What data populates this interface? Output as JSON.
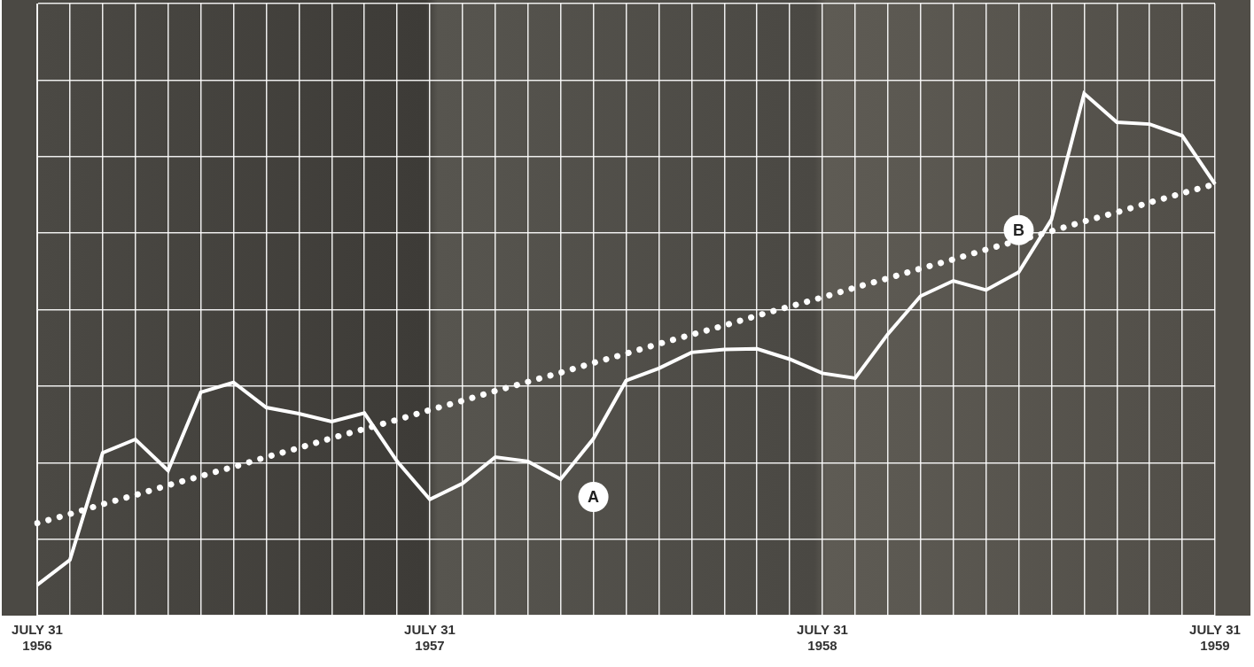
{
  "chart_data": {
    "type": "line",
    "categories": [
      "JULY 31 1956",
      null,
      null,
      null,
      null,
      null,
      null,
      null,
      null,
      null,
      null,
      null,
      "JULY 31 1957",
      null,
      null,
      null,
      null,
      null,
      null,
      null,
      null,
      null,
      null,
      null,
      "JULY 31 1958",
      null,
      null,
      null,
      null,
      null,
      null,
      null,
      null,
      null,
      null,
      null,
      "JULY 31 1959"
    ],
    "series": [
      {
        "color": "#ffffff",
        "line_style": "solid",
        "values": [
          5.0,
          9.1,
          26.6,
          28.8,
          23.7,
          36.5,
          38.1,
          34.0,
          33.0,
          31.7,
          33.1,
          25.2,
          19.0,
          21.6,
          25.9,
          25.2,
          22.3,
          28.9,
          38.4,
          40.4,
          43.0,
          43.5,
          43.6,
          41.9,
          39.6,
          38.8,
          46.0,
          52.2,
          54.7,
          53.2,
          56.1,
          64.7,
          85.3,
          80.6,
          80.3,
          78.4,
          70.5
        ]
      },
      {
        "color": "#ffffff",
        "line_style": "dotted",
        "values": [
          15.1,
          16.6,
          18.2,
          19.7,
          21.3,
          22.8,
          24.3,
          25.9,
          27.4,
          29.0,
          30.5,
          32.0,
          33.6,
          35.1,
          36.7,
          38.2,
          39.7,
          41.3,
          42.8,
          44.4,
          45.9,
          47.4,
          49.0,
          50.5,
          52.0,
          53.6,
          55.1,
          56.7,
          58.2,
          59.8,
          61.3,
          62.8,
          64.4,
          65.9,
          67.5,
          69.0,
          70.5
        ]
      }
    ],
    "annotations": [
      {
        "label": "A",
        "x": 17,
        "value": 19.4
      },
      {
        "label": "B",
        "x": 30,
        "value": 63.0
      }
    ],
    "ylim": [
      0,
      100
    ],
    "yticks": [
      0,
      12.5,
      25,
      37.5,
      50,
      62.5,
      75,
      87.5,
      100
    ],
    "grid": true,
    "tick_labels": "x"
  }
}
